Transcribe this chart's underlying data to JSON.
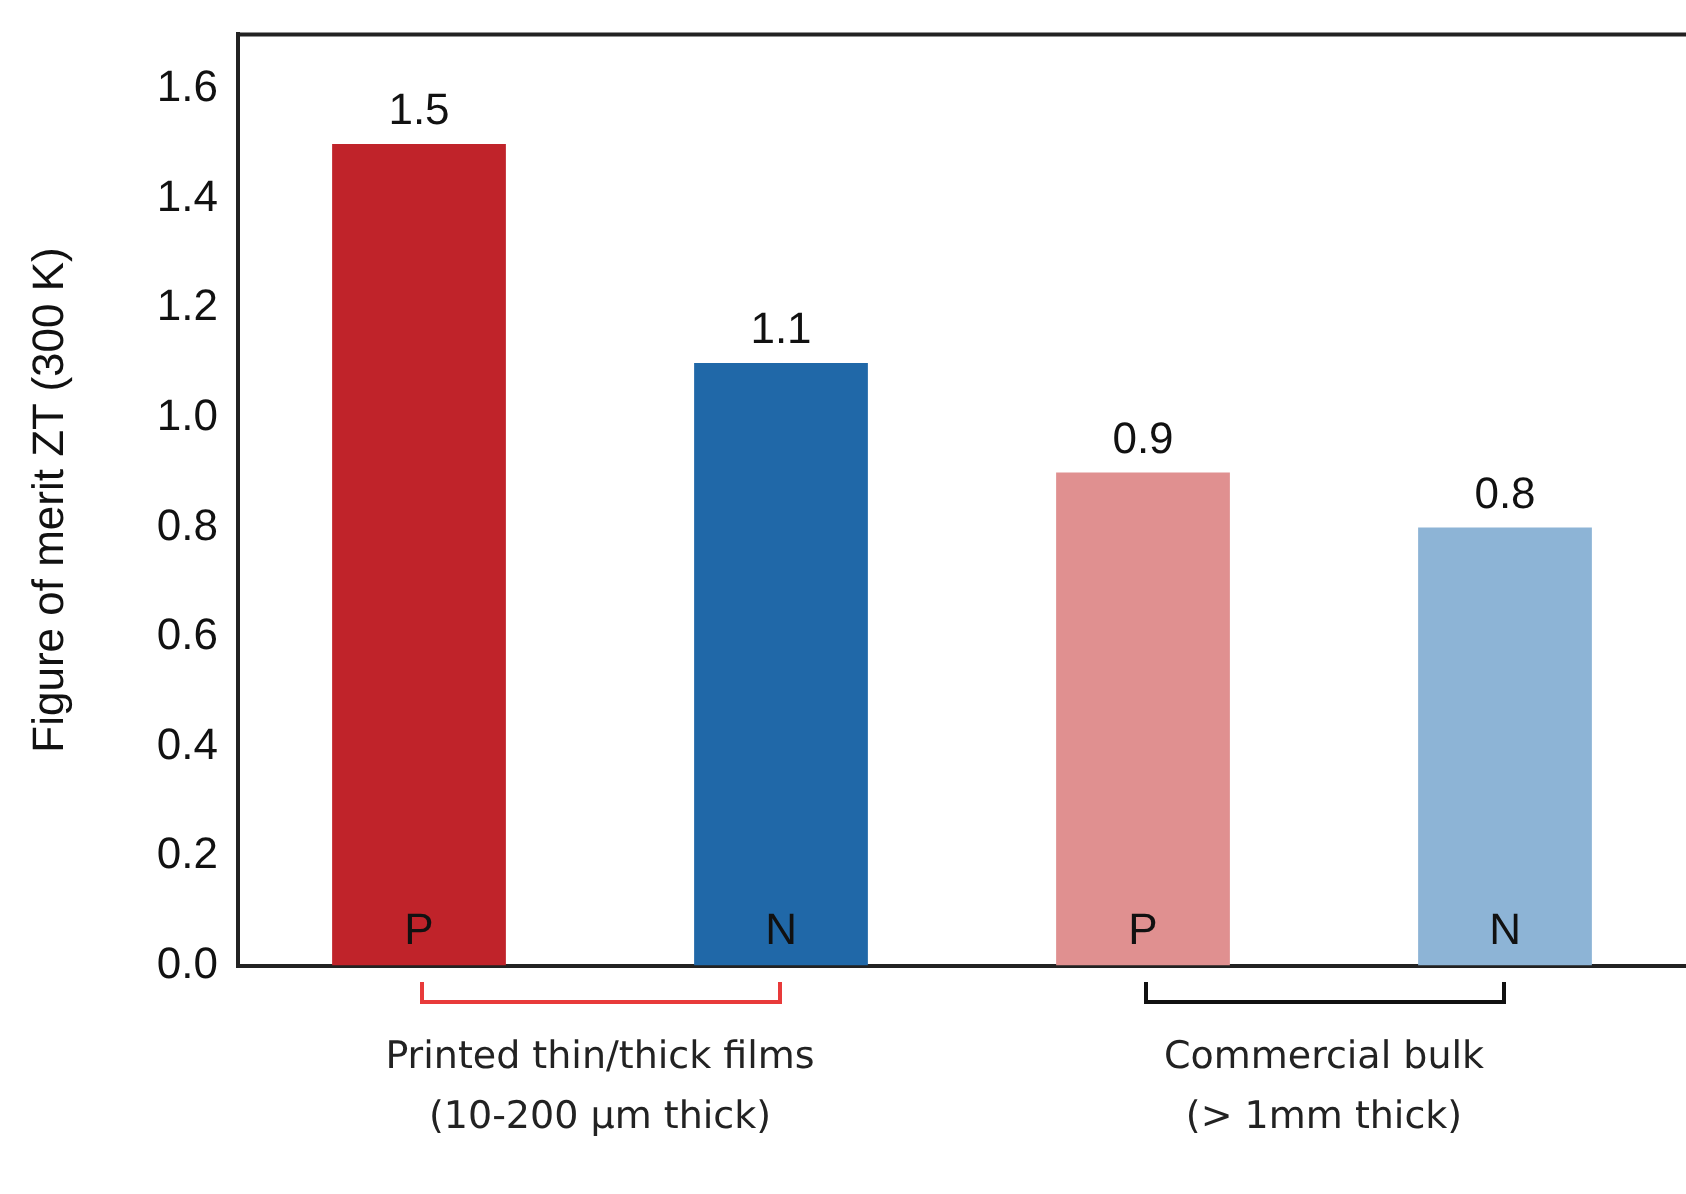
{
  "chart_data": {
    "type": "bar",
    "ylabel": "Figure of merit ZT (300 K)",
    "categories": [
      "P",
      "N",
      "P",
      "N"
    ],
    "values": [
      1.5,
      1.1,
      0.9,
      0.8
    ],
    "colors": [
      "#c0232a",
      "#2068a8",
      "#e09090",
      "#8db4d6"
    ],
    "ylim": [
      0,
      1.7
    ],
    "yticks": [
      {
        "value": 0,
        "label": "0.0"
      },
      0.2,
      0.4,
      0.6,
      0.8,
      {
        "value": 1,
        "label": "1.0"
      },
      1.2,
      1.4,
      1.6
    ],
    "data_labels": true,
    "grid": false,
    "legend": false,
    "annotations": [
      "Printed thin/thick films\n(10-200 µm thick)",
      "Commercial bulk\n(> 1mm thick)"
    ]
  }
}
